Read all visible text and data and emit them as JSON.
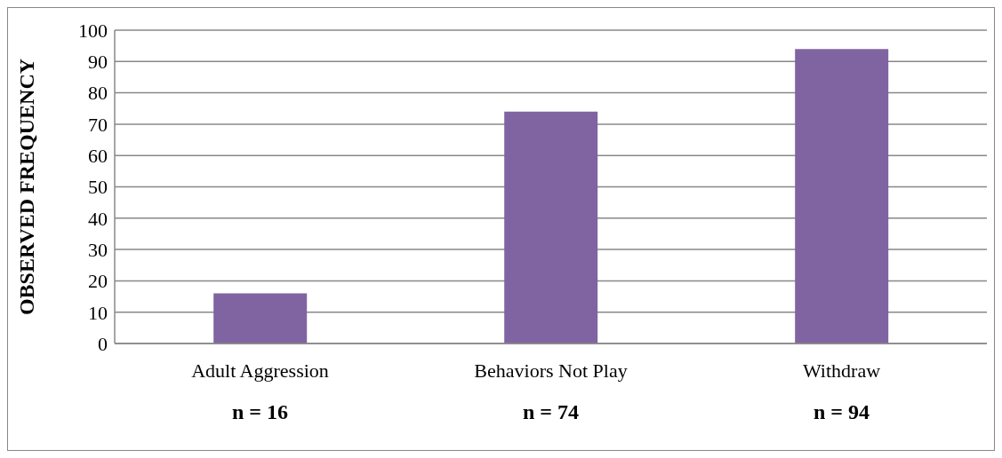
{
  "chart_data": {
    "type": "bar",
    "ylabel": "OBSERVED FREQUENCY",
    "categories": [
      "Adult Aggression",
      "Behaviors Not Play",
      "Withdraw"
    ],
    "values": [
      16,
      74,
      94
    ],
    "value_labels": [
      "n = 16",
      "n = 74",
      "n = 94"
    ],
    "color": "#8064a2",
    "ylim": [
      0,
      100
    ],
    "yticks": [
      0,
      10,
      20,
      30,
      40,
      50,
      60,
      70,
      80,
      90,
      100
    ],
    "grid": "y"
  }
}
